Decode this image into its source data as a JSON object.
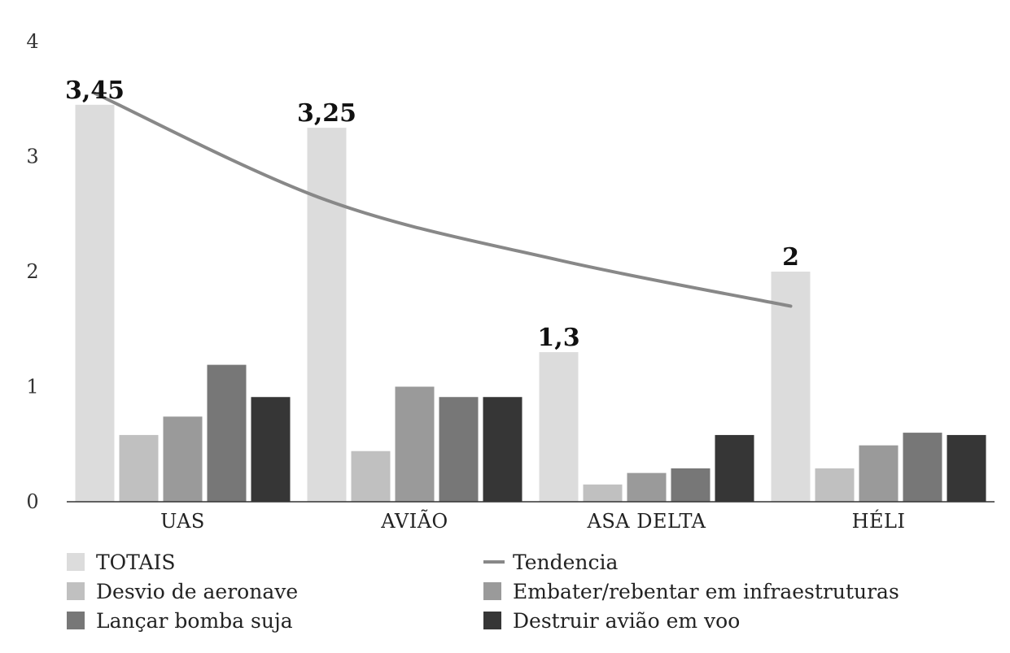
{
  "chart_data": {
    "type": "bar",
    "categories": [
      "UAS",
      "AVIÃO",
      "ASA DELTA",
      "HÉLI"
    ],
    "yticks": [
      "0",
      "1",
      "2",
      "3",
      "4"
    ],
    "ylim": [
      0,
      4
    ],
    "grid": false,
    "legend_position": "bottom",
    "series": [
      {
        "name": "TOTAIS",
        "values": [
          3.45,
          3.25,
          1.3,
          2.0
        ],
        "color": "#dcdcdc",
        "data_labels": [
          "3,45",
          "3,25",
          "1,3",
          "2"
        ]
      },
      {
        "name": "Desvio de aeronave",
        "values": [
          0.58,
          0.44,
          0.15,
          0.29
        ],
        "color": "#c0c0c0"
      },
      {
        "name": "Embater/rebentar em infraestruturas",
        "values": [
          0.74,
          1.0,
          0.25,
          0.49
        ],
        "color": "#9a9a9a"
      },
      {
        "name": "Lançar bomba suja",
        "values": [
          1.19,
          0.91,
          0.29,
          0.6
        ],
        "color": "#777777"
      },
      {
        "name": "Destruir avião em voo",
        "values": [
          0.91,
          0.91,
          0.58,
          0.58
        ],
        "color": "#363636"
      }
    ],
    "trendline": {
      "name": "Tendencia",
      "color": "#888888",
      "kind": "logarithmic",
      "values": [
        3.55,
        2.62,
        2.1,
        1.7
      ]
    }
  }
}
